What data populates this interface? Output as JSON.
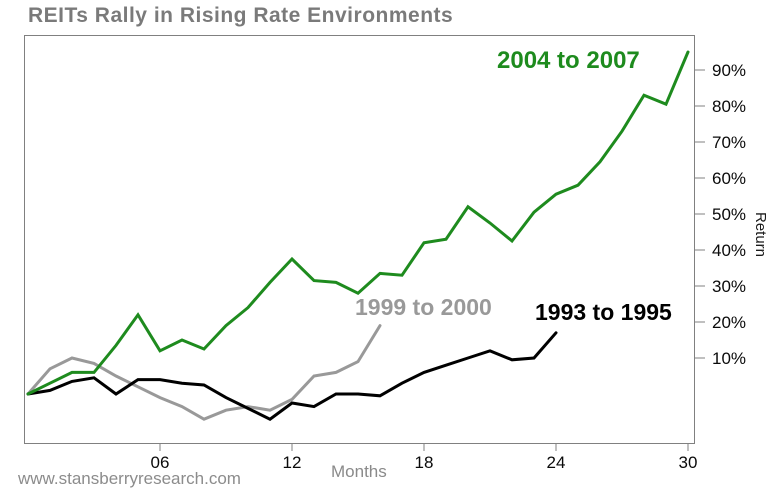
{
  "title": "REITs Rally in Rising Rate Environments",
  "watermark": "www.stansberryresearch.com",
  "chart_data": {
    "type": "line",
    "title": "REITs Rally in Rising Rate Environments",
    "xlabel": "Months",
    "ylabel": "Return",
    "y_axis_side": "right",
    "grid": false,
    "legend_position": "inline-annotations",
    "xlim": [
      0,
      30
    ],
    "ylim": [
      -13,
      100
    ],
    "x_ticks": [
      "06",
      "12",
      "18",
      "24",
      "30"
    ],
    "x_tick_months": [
      6,
      12,
      18,
      24,
      30
    ],
    "y_ticks": [
      "10%",
      "20%",
      "30%",
      "40%",
      "50%",
      "60%",
      "70%",
      "80%",
      "90%"
    ],
    "y_tick_values": [
      10,
      20,
      30,
      40,
      50,
      60,
      70,
      80,
      90
    ],
    "x_unit": "months since start",
    "y_unit": "percent return",
    "series": [
      {
        "name": "2004 to 2007",
        "color": "#1e8b1e",
        "start_month": 0,
        "values": [
          0,
          3,
          6,
          6,
          13.5,
          22,
          12,
          15,
          12.5,
          19,
          24,
          31,
          37.5,
          31.5,
          31,
          28,
          33.5,
          33,
          42,
          43,
          52,
          47.5,
          42.5,
          50.5,
          55.5,
          58,
          64.5,
          73,
          83,
          80.5,
          95
        ]
      },
      {
        "name": "1999 to 2000",
        "color": "#999999",
        "start_month": 0,
        "values": [
          0,
          7,
          10,
          8.5,
          5,
          2,
          -1,
          -3.5,
          -7,
          -4.5,
          -3.5,
          -4.5,
          -1.5,
          5,
          6,
          9,
          19
        ]
      },
      {
        "name": "1993 to 1995",
        "color": "#000000",
        "start_month": 0,
        "values": [
          0,
          1,
          3.5,
          4.5,
          0,
          4,
          4,
          3,
          2.5,
          -1,
          -4,
          -7,
          -2.5,
          -3.5,
          0,
          0,
          -0.5,
          3,
          6,
          8,
          10,
          12,
          9.5,
          10,
          17
        ]
      }
    ]
  }
}
